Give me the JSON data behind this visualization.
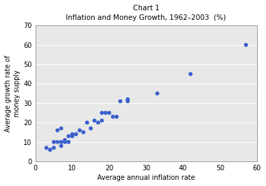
{
  "title_line1": "Chart 1",
  "title_line2": "Inflation and Money Growth, 1962–2003  (%)",
  "xlabel": "Average annual inflation rate",
  "ylabel": "Average growth rate of\nmoney supply",
  "xlim": [
    0,
    60
  ],
  "ylim": [
    0,
    70
  ],
  "xticks": [
    0,
    10,
    20,
    30,
    40,
    50,
    60
  ],
  "yticks": [
    0,
    10,
    20,
    30,
    40,
    50,
    60,
    70
  ],
  "dot_color": "#3a5fcd",
  "background_color": "#ffffff",
  "plot_bg_color": "#e8e8e8",
  "x_data": [
    3,
    4,
    5,
    5,
    6,
    6,
    7,
    7,
    7,
    8,
    8,
    9,
    9,
    10,
    10,
    11,
    12,
    13,
    14,
    15,
    16,
    17,
    18,
    18,
    19,
    20,
    21,
    22,
    23,
    25,
    25,
    33,
    42,
    57
  ],
  "y_data": [
    7,
    6,
    7,
    10,
    10,
    16,
    8,
    10,
    17,
    10,
    11,
    10,
    13,
    13,
    14,
    14,
    16,
    15,
    20,
    17,
    21,
    20,
    21,
    25,
    25,
    25,
    23,
    23,
    31,
    31,
    32,
    35,
    45,
    60
  ]
}
